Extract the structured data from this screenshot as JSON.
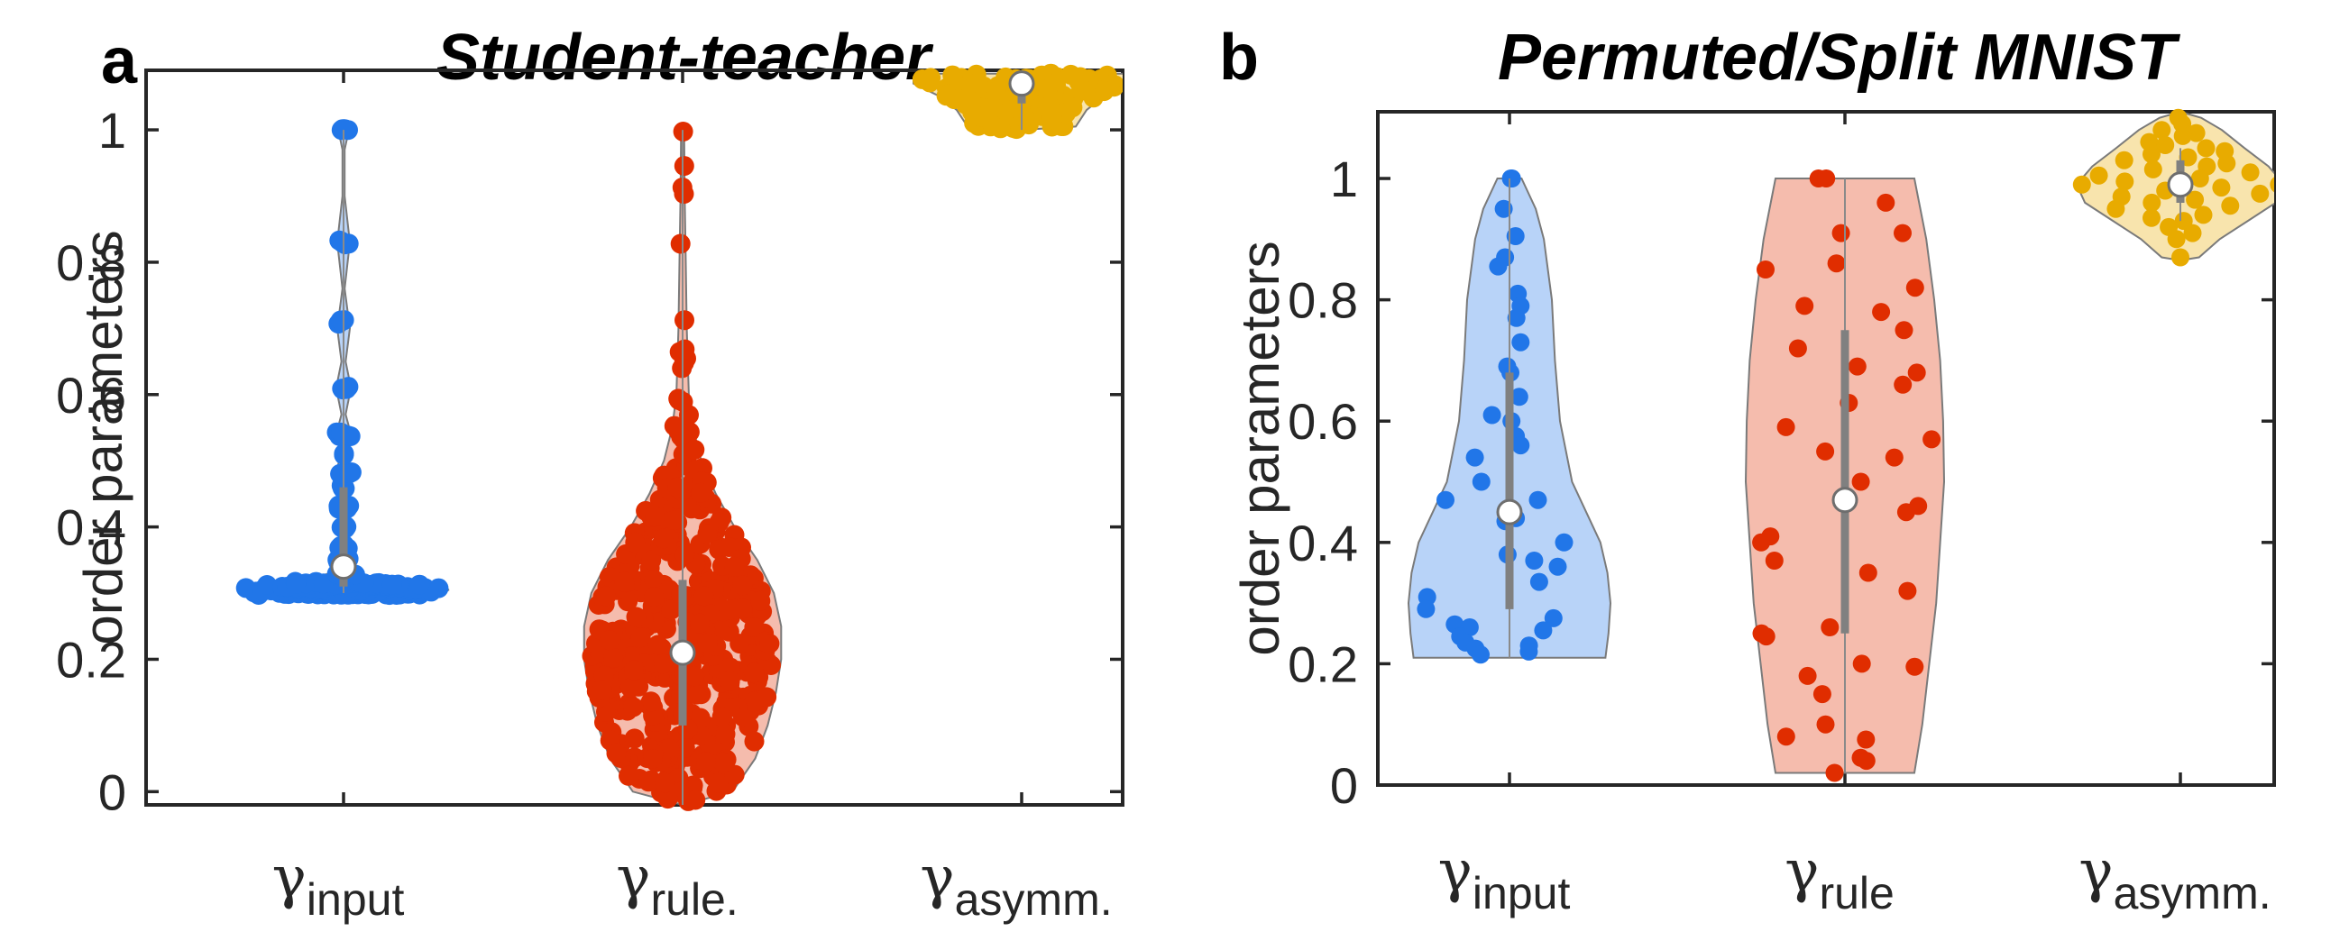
{
  "colors": {
    "input": "#2176e8",
    "rule": "#e02d00",
    "asymm": "#e8ab00",
    "box": "#808080",
    "axis": "#262626"
  },
  "chart_data": [
    {
      "type": "violin",
      "panel": "a",
      "title": "Student-teacher",
      "ylabel": "order parameters",
      "ylim": [
        -0.02,
        1.09
      ],
      "yticks": [
        0,
        0.2,
        0.4,
        0.6,
        0.8,
        1
      ],
      "ytick_labels": [
        "0",
        "0.2",
        "0.4",
        "0.6",
        "0.8",
        "1"
      ],
      "categories": [
        {
          "symbol": "γ",
          "sub": "input"
        },
        {
          "symbol": "γ",
          "sub": "rule."
        },
        {
          "symbol": "γ",
          "sub": "asymm."
        }
      ],
      "series": [
        {
          "name": "input",
          "median": 0.34,
          "q1": 0.31,
          "q3": 0.46,
          "whisker_low": 0.3,
          "whisker_high": 1.0,
          "violin": [
            [
              0.295,
              0.0
            ],
            [
              0.3,
              0.9
            ],
            [
              0.305,
              1.0
            ],
            [
              0.315,
              0.55
            ],
            [
              0.33,
              0.12
            ],
            [
              0.36,
              0.05
            ],
            [
              0.4,
              0.03
            ],
            [
              0.43,
              0.08
            ],
            [
              0.46,
              0.03
            ],
            [
              0.48,
              0.08
            ],
            [
              0.51,
              0.02
            ],
            [
              0.54,
              0.07
            ],
            [
              0.57,
              0.02
            ],
            [
              0.61,
              0.07
            ],
            [
              0.65,
              0.02
            ],
            [
              0.7,
              0.06
            ],
            [
              0.76,
              0.01
            ],
            [
              0.83,
              0.06
            ],
            [
              0.9,
              0.01
            ],
            [
              0.97,
              0.01
            ],
            [
              1.0,
              0.05
            ],
            [
              1.005,
              0.0
            ]
          ],
          "points": [
            {
              "v": 0.3,
              "n": 60
            },
            {
              "v": 0.305,
              "n": 40
            },
            {
              "v": 0.31,
              "n": 30
            },
            {
              "v": 0.315,
              "n": 20
            },
            {
              "v": 0.33,
              "n": 8
            },
            {
              "v": 0.35,
              "n": 6
            },
            {
              "v": 0.37,
              "n": 6
            },
            {
              "v": 0.4,
              "n": 6
            },
            {
              "v": 0.43,
              "n": 5
            },
            {
              "v": 0.46,
              "n": 4
            },
            {
              "v": 0.48,
              "n": 5
            },
            {
              "v": 0.51,
              "n": 3
            },
            {
              "v": 0.54,
              "n": 5
            },
            {
              "v": 0.61,
              "n": 5
            },
            {
              "v": 0.71,
              "n": 5
            },
            {
              "v": 0.83,
              "n": 5
            },
            {
              "v": 1.0,
              "n": 5
            }
          ]
        },
        {
          "name": "rule",
          "median": 0.21,
          "q1": 0.1,
          "q3": 0.32,
          "whisker_low": -0.02,
          "whisker_high": 1.0,
          "violin": [
            [
              -0.02,
              0.0
            ],
            [
              0.0,
              0.48
            ],
            [
              0.05,
              0.7
            ],
            [
              0.1,
              0.82
            ],
            [
              0.15,
              0.9
            ],
            [
              0.2,
              0.95
            ],
            [
              0.25,
              0.95
            ],
            [
              0.3,
              0.88
            ],
            [
              0.35,
              0.72
            ],
            [
              0.4,
              0.5
            ],
            [
              0.45,
              0.32
            ],
            [
              0.5,
              0.18
            ],
            [
              0.55,
              0.1
            ],
            [
              0.6,
              0.06
            ],
            [
              0.7,
              0.04
            ],
            [
              0.8,
              0.03
            ],
            [
              0.9,
              0.02
            ],
            [
              1.0,
              0.015
            ]
          ],
          "n_points": 420,
          "seed": 11
        },
        {
          "name": "asymm",
          "median": 1.07,
          "q1": 1.04,
          "q3": 1.08,
          "whisker_low": 1.0,
          "whisker_high": 1.09,
          "violin": [
            [
              1.0,
              0.0
            ],
            [
              1.005,
              0.5
            ],
            [
              1.03,
              0.6
            ],
            [
              1.05,
              0.75
            ],
            [
              1.07,
              1.0
            ],
            [
              1.08,
              1.0
            ],
            [
              1.085,
              0.95
            ]
          ],
          "n_points": 120,
          "seed": 5
        }
      ]
    },
    {
      "type": "violin",
      "panel": "b",
      "title": "Permuted/Split MNIST",
      "ylabel": "order parameters",
      "ylim": [
        0,
        1.11
      ],
      "yticks": [
        0,
        0.2,
        0.4,
        0.6,
        0.8,
        1
      ],
      "ytick_labels": [
        "0",
        "0.2",
        "0.4",
        "0.6",
        "0.8",
        "1"
      ],
      "categories": [
        {
          "symbol": "γ",
          "sub": "input"
        },
        {
          "symbol": "γ",
          "sub": "rule"
        },
        {
          "symbol": "γ",
          "sub": "asymm."
        }
      ],
      "series": [
        {
          "name": "input",
          "median": 0.45,
          "q1": 0.29,
          "q3": 0.68,
          "whisker_low": 0.21,
          "whisker_high": 1.0,
          "violin": [
            [
              0.21,
              0.95
            ],
            [
              0.25,
              0.98
            ],
            [
              0.3,
              1.0
            ],
            [
              0.35,
              0.97
            ],
            [
              0.4,
              0.9
            ],
            [
              0.45,
              0.76
            ],
            [
              0.5,
              0.62
            ],
            [
              0.6,
              0.5
            ],
            [
              0.7,
              0.45
            ],
            [
              0.8,
              0.42
            ],
            [
              0.9,
              0.34
            ],
            [
              0.95,
              0.26
            ],
            [
              1.0,
              0.12
            ]
          ],
          "points": [
            {
              "v": 1.0,
              "d": 0.12
            },
            {
              "v": 1.0,
              "d": 0.2
            },
            {
              "v": 0.95,
              "d": -0.22
            },
            {
              "v": 0.905,
              "d": 0.18
            },
            {
              "v": 0.87,
              "d": -0.12
            },
            {
              "v": 0.855,
              "d": -0.3
            },
            {
              "v": 0.81,
              "d": 0.2
            },
            {
              "v": 0.79,
              "d": 0.26
            },
            {
              "v": 0.77,
              "d": 0.16
            },
            {
              "v": 0.73,
              "d": 0.25
            },
            {
              "v": 0.69,
              "d": -0.05
            },
            {
              "v": 0.68,
              "d": 0.02
            },
            {
              "v": 0.64,
              "d": 0.2
            },
            {
              "v": 0.61,
              "d": -0.35
            },
            {
              "v": 0.6,
              "d": 0.04
            },
            {
              "v": 0.575,
              "d": 0.12
            },
            {
              "v": 0.56,
              "d": 0.2
            },
            {
              "v": 0.54,
              "d": -0.6
            },
            {
              "v": 0.5,
              "d": -0.45
            },
            {
              "v": 0.47,
              "d": -0.9
            },
            {
              "v": 0.47,
              "d": 0.4
            },
            {
              "v": 0.44,
              "d": 0.08
            },
            {
              "v": 0.435,
              "d": -0.05
            },
            {
              "v": 0.4,
              "d": 0.6
            },
            {
              "v": 0.38,
              "d": -0.02
            },
            {
              "v": 0.37,
              "d": 0.26
            },
            {
              "v": 0.36,
              "d": 0.5
            },
            {
              "v": 0.335,
              "d": 0.3
            },
            {
              "v": 0.31,
              "d": -0.82
            },
            {
              "v": 0.29,
              "d": -0.83
            },
            {
              "v": 0.275,
              "d": 0.44
            },
            {
              "v": 0.265,
              "d": -0.55
            },
            {
              "v": 0.26,
              "d": -0.4
            },
            {
              "v": 0.255,
              "d": 0.34
            },
            {
              "v": 0.245,
              "d": -0.5
            },
            {
              "v": 0.235,
              "d": -0.45
            },
            {
              "v": 0.23,
              "d": 0.2
            },
            {
              "v": 0.225,
              "d": -0.35
            },
            {
              "v": 0.215,
              "d": -0.3
            },
            {
              "v": 0.22,
              "d": 0.2
            }
          ]
        },
        {
          "name": "rule",
          "median": 0.47,
          "q1": 0.25,
          "q3": 0.75,
          "whisker_low": 0.02,
          "whisker_high": 1.0,
          "violin": [
            [
              0.02,
              0.7
            ],
            [
              0.1,
              0.78
            ],
            [
              0.2,
              0.85
            ],
            [
              0.3,
              0.92
            ],
            [
              0.4,
              0.96
            ],
            [
              0.5,
              1.0
            ],
            [
              0.6,
              0.99
            ],
            [
              0.7,
              0.96
            ],
            [
              0.8,
              0.9
            ],
            [
              0.9,
              0.82
            ],
            [
              1.0,
              0.7
            ]
          ],
          "points": [
            {
              "v": 1.0,
              "d": -0.38
            },
            {
              "v": 1.0,
              "d": -0.27
            },
            {
              "v": 0.96,
              "d": 0.55
            },
            {
              "v": 0.91,
              "d": 0.72
            },
            {
              "v": 0.91,
              "d": -0.05
            },
            {
              "v": 0.86,
              "d": -0.1
            },
            {
              "v": 0.85,
              "d": -0.93
            },
            {
              "v": 0.82,
              "d": 0.8
            },
            {
              "v": 0.79,
              "d": -0.45
            },
            {
              "v": 0.78,
              "d": 0.4
            },
            {
              "v": 0.75,
              "d": 0.64
            },
            {
              "v": 0.72,
              "d": -0.5
            },
            {
              "v": 0.69,
              "d": 0.13
            },
            {
              "v": 0.68,
              "d": 0.75
            },
            {
              "v": 0.66,
              "d": 0.6
            },
            {
              "v": 0.63,
              "d": 0.04
            },
            {
              "v": 0.59,
              "d": -0.6
            },
            {
              "v": 0.57,
              "d": 0.88
            },
            {
              "v": 0.55,
              "d": -0.2
            },
            {
              "v": 0.54,
              "d": 0.5
            },
            {
              "v": 0.5,
              "d": 0.16
            },
            {
              "v": 0.46,
              "d": 0.75
            },
            {
              "v": 0.45,
              "d": 0.63
            },
            {
              "v": 0.41,
              "d": -0.78
            },
            {
              "v": 0.4,
              "d": -0.88
            },
            {
              "v": 0.37,
              "d": -0.75
            },
            {
              "v": 0.35,
              "d": 0.25
            },
            {
              "v": 0.32,
              "d": 0.68
            },
            {
              "v": 0.26,
              "d": -0.17
            },
            {
              "v": 0.25,
              "d": -0.95
            },
            {
              "v": 0.245,
              "d": -0.9
            },
            {
              "v": 0.2,
              "d": 0.2
            },
            {
              "v": 0.195,
              "d": 0.83
            },
            {
              "v": 0.18,
              "d": -0.45
            },
            {
              "v": 0.15,
              "d": -0.28
            },
            {
              "v": 0.1,
              "d": -0.25
            },
            {
              "v": 0.08,
              "d": -0.78
            },
            {
              "v": 0.075,
              "d": 0.28
            },
            {
              "v": 0.045,
              "d": 0.22
            },
            {
              "v": 0.04,
              "d": 0.3
            },
            {
              "v": 0.02,
              "d": -0.15
            }
          ]
        },
        {
          "name": "asymm",
          "median": 0.99,
          "q1": 0.96,
          "q3": 1.03,
          "whisker_low": 0.93,
          "whisker_high": 1.05,
          "violin": [
            [
              0.865,
              0.0
            ],
            [
              0.87,
              0.18
            ],
            [
              0.9,
              0.38
            ],
            [
              0.93,
              0.65
            ],
            [
              0.96,
              0.92
            ],
            [
              0.99,
              1.0
            ],
            [
              1.02,
              0.85
            ],
            [
              1.05,
              0.62
            ],
            [
              1.08,
              0.4
            ],
            [
              1.1,
              0.2
            ],
            [
              1.11,
              0.0
            ]
          ],
          "points": [
            {
              "v": 1.1,
              "d": -0.1
            },
            {
              "v": 1.09,
              "d": 0.06
            },
            {
              "v": 1.08,
              "d": -0.45
            },
            {
              "v": 1.075,
              "d": 0.35
            },
            {
              "v": 1.07,
              "d": 0.05
            },
            {
              "v": 1.06,
              "d": -0.55
            },
            {
              "v": 1.055,
              "d": -0.25
            },
            {
              "v": 1.05,
              "d": 0.4
            },
            {
              "v": 1.045,
              "d": 0.65
            },
            {
              "v": 1.04,
              "d": -0.4
            },
            {
              "v": 1.035,
              "d": 0.1
            },
            {
              "v": 1.03,
              "d": -0.7
            },
            {
              "v": 1.025,
              "d": 0.55
            },
            {
              "v": 1.02,
              "d": 0.3
            },
            {
              "v": 1.015,
              "d": -0.3
            },
            {
              "v": 1.01,
              "d": 0.75
            },
            {
              "v": 1.005,
              "d": -0.85
            },
            {
              "v": 1.0,
              "d": 0.2
            },
            {
              "v": 0.995,
              "d": -0.55
            },
            {
              "v": 0.99,
              "d": 0.95
            },
            {
              "v": 0.99,
              "d": -0.95
            },
            {
              "v": 0.985,
              "d": 0.4
            },
            {
              "v": 0.98,
              "d": -0.15
            },
            {
              "v": 0.975,
              "d": 0.8
            },
            {
              "v": 0.97,
              "d": -0.6
            },
            {
              "v": 0.965,
              "d": 0.15
            },
            {
              "v": 0.96,
              "d": -0.3
            },
            {
              "v": 0.955,
              "d": 0.55
            },
            {
              "v": 0.95,
              "d": -0.75
            },
            {
              "v": 0.94,
              "d": 0.3
            },
            {
              "v": 0.935,
              "d": -0.4
            },
            {
              "v": 0.93,
              "d": 0.05
            },
            {
              "v": 0.92,
              "d": -0.2
            },
            {
              "v": 0.91,
              "d": 0.25
            },
            {
              "v": 0.9,
              "d": -0.1
            },
            {
              "v": 0.87,
              "d": 0.0
            }
          ]
        }
      ]
    }
  ]
}
